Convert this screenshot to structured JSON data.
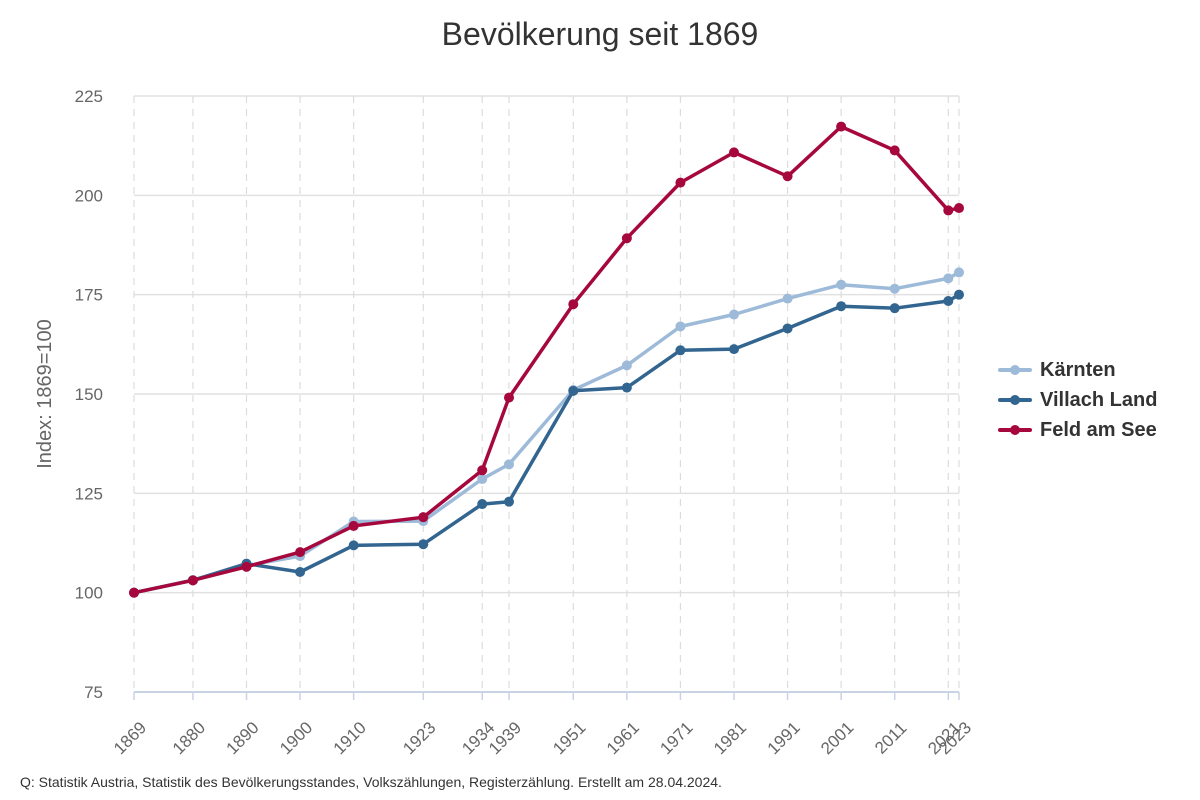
{
  "chart_data": {
    "type": "line",
    "title": "Bevölkerung seit 1869",
    "xlabel": "",
    "ylabel": "Index: 1869=100",
    "ylim": [
      75,
      225
    ],
    "yticks": [
      75,
      100,
      125,
      150,
      175,
      200,
      225
    ],
    "x": [
      1869,
      1880,
      1890,
      1900,
      1910,
      1923,
      1934,
      1939,
      1951,
      1961,
      1971,
      1981,
      1991,
      2001,
      2011,
      2021,
      2023
    ],
    "x_tick_labels": [
      "1869",
      "1880",
      "1890",
      "1900",
      "1910",
      "1923",
      "1934",
      "1939",
      "1951",
      "1961",
      "1971",
      "1981",
      "1991",
      "2001",
      "2011",
      "2021",
      "2023"
    ],
    "grid": true,
    "legend_position": "right",
    "series": [
      {
        "name": "Kärnten",
        "color": "#9dbad9",
        "values": [
          100,
          103.2,
          106.8,
          109.2,
          117.9,
          118.0,
          128.6,
          132.3,
          151.0,
          157.2,
          167.0,
          170.0,
          174.0,
          177.5,
          176.5,
          179.1,
          180.6
        ]
      },
      {
        "name": "Villach Land",
        "color": "#32658f",
        "values": [
          100,
          103.1,
          107.3,
          105.2,
          111.9,
          112.2,
          122.3,
          122.9,
          150.8,
          151.6,
          161.0,
          161.3,
          166.5,
          172.1,
          171.6,
          173.4,
          175.0
        ]
      },
      {
        "name": "Feld am See",
        "color": "#a6083e",
        "values": [
          100,
          103.1,
          106.5,
          110.2,
          116.8,
          119.0,
          130.8,
          149.1,
          172.6,
          189.2,
          203.2,
          210.8,
          204.8,
          217.3,
          211.3,
          196.2,
          196.8
        ]
      }
    ]
  },
  "footer": {
    "source": "Q: Statistik Austria, Statistik des Bevölkerungsstandes, Volkszählungen, Registerzählung. Erstellt am 28.04.2024."
  }
}
